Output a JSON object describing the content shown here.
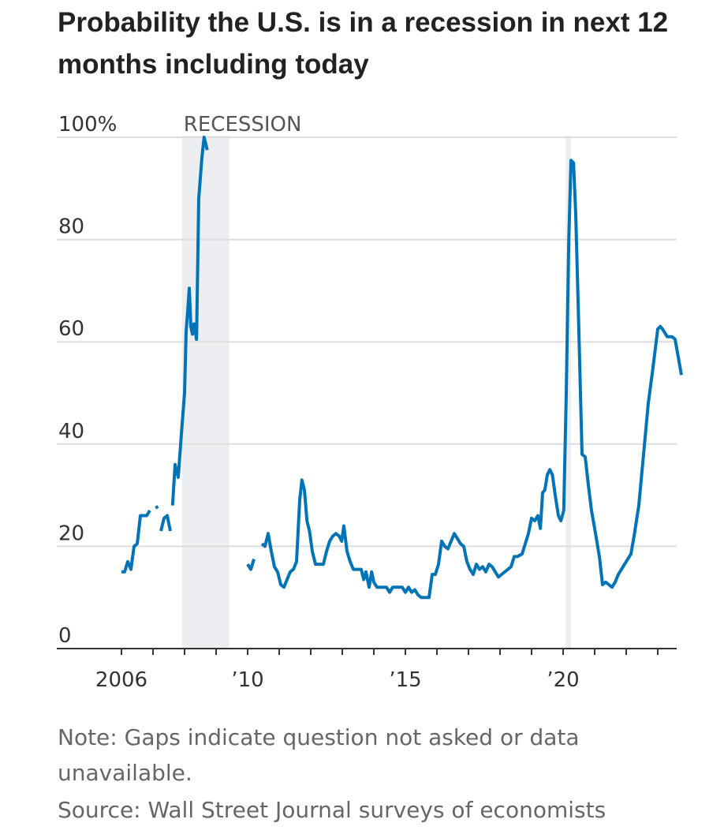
{
  "title": "Probability the U.S. is in a recession in next 12 months including today",
  "note": "Note: Gaps indicate question not asked or data unavailable.",
  "source": "Source: Wall Street Journal surveys of economists",
  "colors": {
    "line": "#0274b6",
    "recession": "#eceef1",
    "grid": "#dddddd",
    "axis": "#333333"
  },
  "chart_data": {
    "type": "line",
    "title": "Probability the U.S. is in a recession in next 12 months including today",
    "xlabel": "",
    "ylabel": "",
    "xlim": [
      2004.2,
      2023.8
    ],
    "ylim": [
      0,
      100
    ],
    "y_ticks": [
      0,
      20,
      40,
      60,
      80,
      100
    ],
    "y_tick_labels": [
      "0",
      "20",
      "40",
      "60",
      "80",
      "100%"
    ],
    "x_tick_labels": [
      {
        "x": 2006.0,
        "label": "2006"
      },
      {
        "x": 2010.0,
        "label": "’10"
      },
      {
        "x": 2015.0,
        "label": "’15"
      },
      {
        "x": 2020.0,
        "label": "’20"
      }
    ],
    "x_minor_ticks": [
      2006,
      2007,
      2008,
      2009,
      2010,
      2011,
      2012,
      2013,
      2014,
      2015,
      2016,
      2017,
      2018,
      2019,
      2020,
      2021,
      2022,
      2023
    ],
    "grid": true,
    "recession_label": "RECESSION",
    "recession_periods": [
      [
        2007.92,
        2009.42
      ],
      [
        2020.08,
        2020.25
      ]
    ],
    "segments": [
      [
        [
          2006.0,
          15
        ],
        [
          2006.1,
          15
        ],
        [
          2006.2,
          17
        ],
        [
          2006.3,
          15.5
        ],
        [
          2006.4,
          20
        ],
        [
          2006.5,
          20.5
        ],
        [
          2006.6,
          26
        ],
        [
          2006.7,
          26
        ],
        [
          2006.8,
          26
        ],
        [
          2006.9,
          27
        ]
      ],
      [
        [
          2007.08,
          27.5
        ],
        [
          2007.16,
          27.8
        ]
      ],
      [
        [
          2007.25,
          23
        ],
        [
          2007.35,
          25.5
        ],
        [
          2007.45,
          26
        ],
        [
          2007.55,
          23
        ]
      ],
      [
        [
          2007.62,
          28
        ],
        [
          2007.7,
          36
        ],
        [
          2007.8,
          33.5
        ],
        [
          2007.9,
          42
        ],
        [
          2008.0,
          50
        ],
        [
          2008.05,
          62
        ],
        [
          2008.1,
          66
        ],
        [
          2008.15,
          70.5
        ],
        [
          2008.2,
          63
        ],
        [
          2008.25,
          61.5
        ],
        [
          2008.3,
          63.5
        ],
        [
          2008.38,
          60.5
        ],
        [
          2008.45,
          88
        ],
        [
          2008.55,
          96
        ],
        [
          2008.62,
          100
        ],
        [
          2008.72,
          97.5
        ]
      ],
      [
        [
          2010.0,
          16.5
        ],
        [
          2010.1,
          15.5
        ],
        [
          2010.2,
          17.5
        ]
      ],
      [
        [
          2010.45,
          20.5
        ],
        [
          2010.55,
          20
        ],
        [
          2010.65,
          22.5
        ],
        [
          2010.75,
          19
        ],
        [
          2010.85,
          16
        ],
        [
          2010.95,
          15
        ],
        [
          2011.05,
          12.5
        ],
        [
          2011.15,
          12
        ],
        [
          2011.25,
          13.5
        ],
        [
          2011.35,
          15
        ],
        [
          2011.45,
          15.5
        ],
        [
          2011.55,
          17
        ],
        [
          2011.65,
          29
        ],
        [
          2011.72,
          33
        ],
        [
          2011.8,
          31
        ],
        [
          2011.88,
          25
        ],
        [
          2011.96,
          23
        ],
        [
          2012.05,
          19
        ],
        [
          2012.15,
          16.5
        ],
        [
          2012.3,
          16.5
        ],
        [
          2012.4,
          16.5
        ],
        [
          2012.5,
          19
        ],
        [
          2012.6,
          21
        ],
        [
          2012.7,
          22
        ],
        [
          2012.8,
          22.5
        ],
        [
          2012.9,
          22
        ],
        [
          2012.98,
          21
        ],
        [
          2013.05,
          24
        ],
        [
          2013.15,
          19
        ],
        [
          2013.25,
          17
        ],
        [
          2013.35,
          15.5
        ],
        [
          2013.5,
          15.5
        ],
        [
          2013.6,
          15.5
        ],
        [
          2013.68,
          13.5
        ],
        [
          2013.75,
          15
        ],
        [
          2013.85,
          12
        ],
        [
          2013.93,
          15
        ],
        [
          2014.0,
          13
        ],
        [
          2014.1,
          12
        ],
        [
          2014.2,
          12
        ],
        [
          2014.3,
          12
        ],
        [
          2014.4,
          12
        ],
        [
          2014.5,
          11
        ],
        [
          2014.6,
          12
        ],
        [
          2014.7,
          12
        ],
        [
          2014.8,
          12
        ],
        [
          2014.9,
          12
        ],
        [
          2015.0,
          11
        ],
        [
          2015.1,
          12
        ],
        [
          2015.2,
          11
        ],
        [
          2015.3,
          11.5
        ],
        [
          2015.4,
          10.5
        ],
        [
          2015.5,
          10
        ],
        [
          2015.6,
          10
        ],
        [
          2015.75,
          10
        ],
        [
          2015.85,
          14.5
        ],
        [
          2015.95,
          14.5
        ],
        [
          2016.05,
          16.5
        ],
        [
          2016.15,
          21
        ],
        [
          2016.25,
          20
        ],
        [
          2016.35,
          19.5
        ],
        [
          2016.45,
          21
        ],
        [
          2016.55,
          22.5
        ],
        [
          2016.65,
          21.5
        ],
        [
          2016.75,
          20.5
        ],
        [
          2016.85,
          20
        ],
        [
          2016.95,
          17
        ],
        [
          2017.05,
          15.5
        ],
        [
          2017.15,
          14.5
        ],
        [
          2017.25,
          16.5
        ],
        [
          2017.35,
          15.5
        ],
        [
          2017.45,
          16
        ],
        [
          2017.55,
          15
        ],
        [
          2017.65,
          16.5
        ],
        [
          2017.75,
          16
        ],
        [
          2017.85,
          15
        ],
        [
          2017.95,
          14
        ],
        [
          2018.05,
          14.5
        ],
        [
          2018.15,
          15
        ],
        [
          2018.25,
          15.5
        ],
        [
          2018.35,
          16
        ],
        [
          2018.45,
          18
        ],
        [
          2018.55,
          18
        ],
        [
          2018.7,
          18.5
        ],
        [
          2018.8,
          20.5
        ],
        [
          2018.9,
          22.5
        ],
        [
          2019.0,
          25.5
        ],
        [
          2019.1,
          25
        ],
        [
          2019.2,
          26
        ],
        [
          2019.28,
          23.5
        ],
        [
          2019.35,
          30.5
        ],
        [
          2019.42,
          31
        ],
        [
          2019.5,
          34
        ],
        [
          2019.58,
          35
        ],
        [
          2019.66,
          34
        ],
        [
          2019.75,
          30
        ],
        [
          2019.85,
          26
        ],
        [
          2019.93,
          25
        ],
        [
          2020.02,
          27
        ],
        [
          2020.1,
          50
        ],
        [
          2020.18,
          80
        ],
        [
          2020.25,
          95.5
        ],
        [
          2020.33,
          95
        ],
        [
          2020.4,
          85
        ],
        [
          2020.5,
          62
        ],
        [
          2020.6,
          38
        ],
        [
          2020.7,
          37.5
        ],
        [
          2020.8,
          32
        ],
        [
          2020.9,
          27
        ],
        [
          2021.0,
          23.5
        ],
        [
          2021.15,
          18
        ],
        [
          2021.25,
          12.5
        ],
        [
          2021.35,
          13
        ],
        [
          2021.45,
          12.5
        ],
        [
          2021.55,
          12
        ],
        [
          2021.65,
          13
        ],
        [
          2021.75,
          14.5
        ],
        [
          2021.85,
          15.5
        ],
        [
          2021.95,
          16.5
        ],
        [
          2022.05,
          17.5
        ],
        [
          2022.15,
          18.5
        ],
        [
          2022.25,
          22
        ],
        [
          2022.4,
          28
        ],
        [
          2022.55,
          38
        ],
        [
          2022.7,
          48
        ],
        [
          2022.85,
          55
        ],
        [
          2023.0,
          62.5
        ],
        [
          2023.08,
          63
        ],
        [
          2023.15,
          62.5
        ],
        [
          2023.3,
          61
        ],
        [
          2023.45,
          61
        ],
        [
          2023.55,
          60.5
        ],
        [
          2023.65,
          57
        ],
        [
          2023.75,
          53.5
        ]
      ]
    ]
  }
}
